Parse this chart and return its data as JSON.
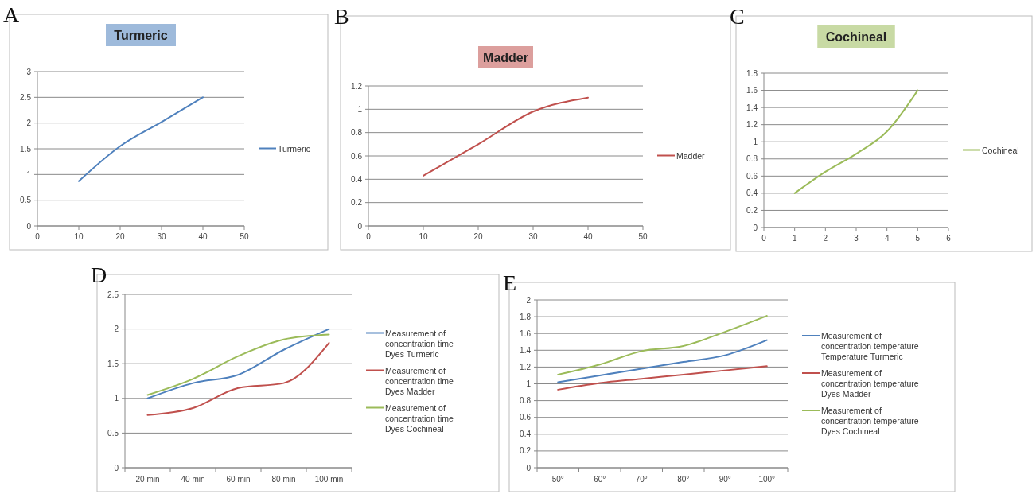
{
  "chart_data": [
    {
      "type": "line",
      "title": "Turmeric",
      "annotations": [
        "A"
      ],
      "x": [
        10,
        20,
        30,
        40
      ],
      "series": [
        {
          "name": "Turmeric",
          "color": "#4f81bd",
          "values": [
            0.87,
            1.55,
            2.02,
            2.5
          ]
        }
      ],
      "xlim": [
        0,
        50
      ],
      "xticks": [
        0,
        10,
        20,
        30,
        40,
        50
      ],
      "ylim": [
        0,
        3
      ],
      "yticks": [
        0,
        0.5,
        1,
        1.5,
        2,
        2.5,
        3
      ],
      "grid": "y",
      "legend": "right"
    },
    {
      "type": "line",
      "title": "Madder",
      "annotations": [
        "B"
      ],
      "x": [
        10,
        20,
        30,
        40
      ],
      "series": [
        {
          "name": "Madder",
          "color": "#c0504d",
          "values": [
            0.43,
            0.7,
            0.98,
            1.1
          ]
        }
      ],
      "xlim": [
        0,
        50
      ],
      "xticks": [
        0,
        10,
        20,
        30,
        40,
        50
      ],
      "ylim": [
        0,
        1.2
      ],
      "yticks": [
        0,
        0.2,
        0.4,
        0.6,
        0.8,
        1,
        1.2
      ],
      "grid": "y",
      "legend": "right"
    },
    {
      "type": "line",
      "title": "Cochineal",
      "annotations": [
        "C"
      ],
      "x": [
        1,
        2,
        3,
        4,
        5
      ],
      "series": [
        {
          "name": "Cochineal",
          "color": "#9bbb59",
          "values": [
            0.4,
            0.65,
            0.86,
            1.12,
            1.6
          ]
        }
      ],
      "xlim": [
        0,
        6
      ],
      "xticks": [
        0,
        1,
        2,
        3,
        4,
        5,
        6
      ],
      "ylim": [
        0,
        1.8
      ],
      "yticks": [
        0,
        0.2,
        0.4,
        0.6,
        0.8,
        1,
        1.2,
        1.4,
        1.6,
        1.8
      ],
      "grid": "y",
      "legend": "right"
    },
    {
      "type": "line",
      "annotations": [
        "D"
      ],
      "categories": [
        "20 min",
        "40 min",
        "60 min",
        "80 min",
        "100 min"
      ],
      "series": [
        {
          "name": "Measurement of concentration time Dyes Turmeric",
          "color": "#4f81bd",
          "values": [
            1.0,
            1.22,
            1.34,
            1.7,
            2.0
          ]
        },
        {
          "name": "Measurement of concentration time Dyes Madder",
          "color": "#c0504d",
          "values": [
            0.76,
            0.86,
            1.15,
            1.22,
            1.8
          ]
        },
        {
          "name": "Measurement of concentration time Dyes Cochineal",
          "color": "#9bbb59",
          "values": [
            1.05,
            1.28,
            1.61,
            1.85,
            1.92
          ]
        }
      ],
      "ylim": [
        0,
        2.5
      ],
      "yticks": [
        0,
        0.5,
        1,
        1.5,
        2,
        2.5
      ],
      "grid": "y",
      "legend": "right"
    },
    {
      "type": "line",
      "annotations": [
        "E"
      ],
      "categories": [
        "50°",
        "60°",
        "70°",
        "80°",
        "90°",
        "100°"
      ],
      "series": [
        {
          "name": "Measurement of concentration temperature Temperature Turmeric",
          "color": "#4f81bd",
          "values": [
            1.02,
            1.1,
            1.18,
            1.26,
            1.34,
            1.52
          ]
        },
        {
          "name": "Measurement of concentration temperature Dyes Madder",
          "color": "#c0504d",
          "values": [
            0.93,
            1.01,
            1.06,
            1.11,
            1.16,
            1.21
          ]
        },
        {
          "name": "Measurement of concentration temperature Dyes Cochineal",
          "color": "#9bbb59",
          "values": [
            1.11,
            1.23,
            1.39,
            1.45,
            1.62,
            1.81
          ]
        }
      ],
      "ylim": [
        0,
        2
      ],
      "yticks": [
        0,
        0.2,
        0.4,
        0.6,
        0.8,
        1,
        1.2,
        1.4,
        1.6,
        1.8,
        2
      ],
      "grid": "y",
      "legend": "right"
    }
  ]
}
